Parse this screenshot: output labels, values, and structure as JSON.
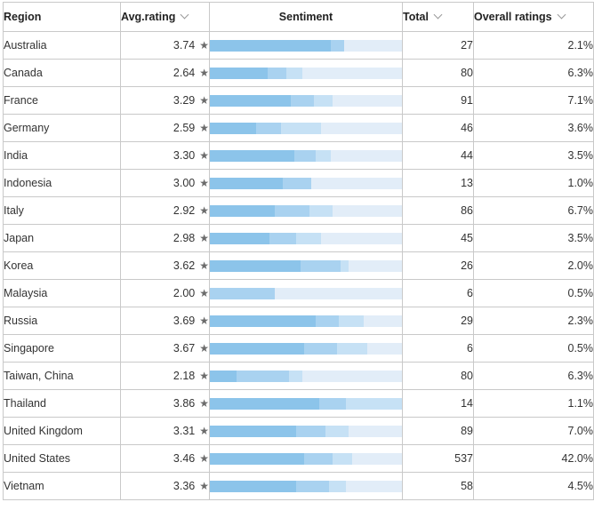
{
  "headers": {
    "region": "Region",
    "avg_rating": "Avg.rating",
    "sentiment": "Sentiment",
    "total": "Total",
    "overall": "Overall ratings"
  },
  "colors": {
    "seg1": "#8cc4ea",
    "seg2": "#a9d2f0",
    "seg3": "#c6e1f5",
    "track": "#e2edf8"
  },
  "rows": [
    {
      "region": "Australia",
      "avg": "3.74",
      "total": "27",
      "overall": "2.1%",
      "bars": [
        0.63,
        0.07,
        0.0
      ]
    },
    {
      "region": "Canada",
      "avg": "2.64",
      "total": "80",
      "overall": "6.3%",
      "bars": [
        0.3,
        0.1,
        0.08
      ]
    },
    {
      "region": "France",
      "avg": "3.29",
      "total": "91",
      "overall": "7.1%",
      "bars": [
        0.42,
        0.12,
        0.1
      ]
    },
    {
      "region": "Germany",
      "avg": "2.59",
      "total": "46",
      "overall": "3.6%",
      "bars": [
        0.24,
        0.13,
        0.21
      ]
    },
    {
      "region": "India",
      "avg": "3.30",
      "total": "44",
      "overall": "3.5%",
      "bars": [
        0.44,
        0.11,
        0.08
      ]
    },
    {
      "region": "Indonesia",
      "avg": "3.00",
      "total": "13",
      "overall": "1.0%",
      "bars": [
        0.38,
        0.15,
        0.0
      ]
    },
    {
      "region": "Italy",
      "avg": "2.92",
      "total": "86",
      "overall": "6.7%",
      "bars": [
        0.34,
        0.18,
        0.12
      ]
    },
    {
      "region": "Japan",
      "avg": "2.98",
      "total": "45",
      "overall": "3.5%",
      "bars": [
        0.31,
        0.14,
        0.13
      ]
    },
    {
      "region": "Korea",
      "avg": "3.62",
      "total": "26",
      "overall": "2.0%",
      "bars": [
        0.47,
        0.21,
        0.04
      ]
    },
    {
      "region": "Malaysia",
      "avg": "2.00",
      "total": "6",
      "overall": "0.5%",
      "bars": [
        0.0,
        0.34,
        0.0
      ]
    },
    {
      "region": "Russia",
      "avg": "3.69",
      "total": "29",
      "overall": "2.3%",
      "bars": [
        0.55,
        0.12,
        0.13
      ]
    },
    {
      "region": "Singapore",
      "avg": "3.67",
      "total": "6",
      "overall": "0.5%",
      "bars": [
        0.49,
        0.17,
        0.16
      ]
    },
    {
      "region": "Taiwan, China",
      "avg": "2.18",
      "total": "80",
      "overall": "6.3%",
      "bars": [
        0.14,
        0.27,
        0.07
      ]
    },
    {
      "region": "Thailand",
      "avg": "3.86",
      "total": "14",
      "overall": "1.1%",
      "bars": [
        0.57,
        0.14,
        0.29
      ]
    },
    {
      "region": "United Kingdom",
      "avg": "3.31",
      "total": "89",
      "overall": "7.0%",
      "bars": [
        0.45,
        0.15,
        0.12
      ]
    },
    {
      "region": "United States",
      "avg": "3.46",
      "total": "537",
      "overall": "42.0%",
      "bars": [
        0.49,
        0.15,
        0.1
      ]
    },
    {
      "region": "Vietnam",
      "avg": "3.36",
      "total": "58",
      "overall": "4.5%",
      "bars": [
        0.45,
        0.17,
        0.09
      ]
    }
  ]
}
